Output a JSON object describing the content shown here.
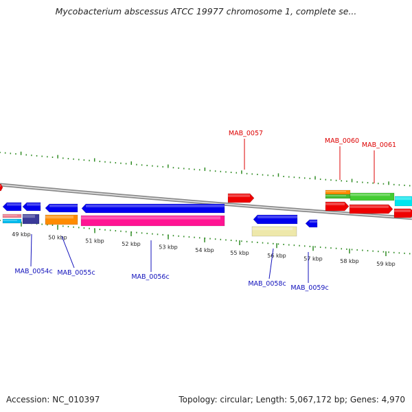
{
  "title": "Mycobacterium abscessus ATCC 19977 chromosome 1, complete se...",
  "footer": {
    "accession": "Accession: NC_010397",
    "summary": "Topology: circular; Length: 5,067,172 bp; Genes: 4,970"
  },
  "colors": {
    "tick": "#2e8b22",
    "backbone": "#8a8a8a",
    "top_label": "#dd0000",
    "bottom_label": "#1010bb"
  },
  "kbp_ticks": [
    "49 kbp",
    "50 kbp",
    "51 kbp",
    "52 kbp",
    "53 kbp",
    "54 kbp",
    "55 kbp",
    "56 kbp",
    "57 kbp",
    "58 kbp",
    "59 kbp"
  ],
  "genes_top": [
    {
      "id": "MAB_0057",
      "color": "#ff0000",
      "direction": "forward"
    },
    {
      "id": "MAB_0060",
      "color": "#ff0000",
      "direction": "forward"
    },
    {
      "id": "MAB_0061",
      "color": "#ff0000",
      "direction": "forward"
    }
  ],
  "genes_bottom": [
    {
      "id": "MAB_0054c",
      "color": "#0000dd",
      "direction": "reverse"
    },
    {
      "id": "MAB_0055c",
      "color": "#0000dd",
      "direction": "reverse"
    },
    {
      "id": "MAB_0056c",
      "color": "#0000dd",
      "direction": "reverse"
    },
    {
      "id": "MAB_0058c",
      "color": "#0000dd",
      "direction": "reverse"
    },
    {
      "id": "MAB_0059c",
      "color": "#0000dd",
      "direction": "reverse"
    }
  ]
}
